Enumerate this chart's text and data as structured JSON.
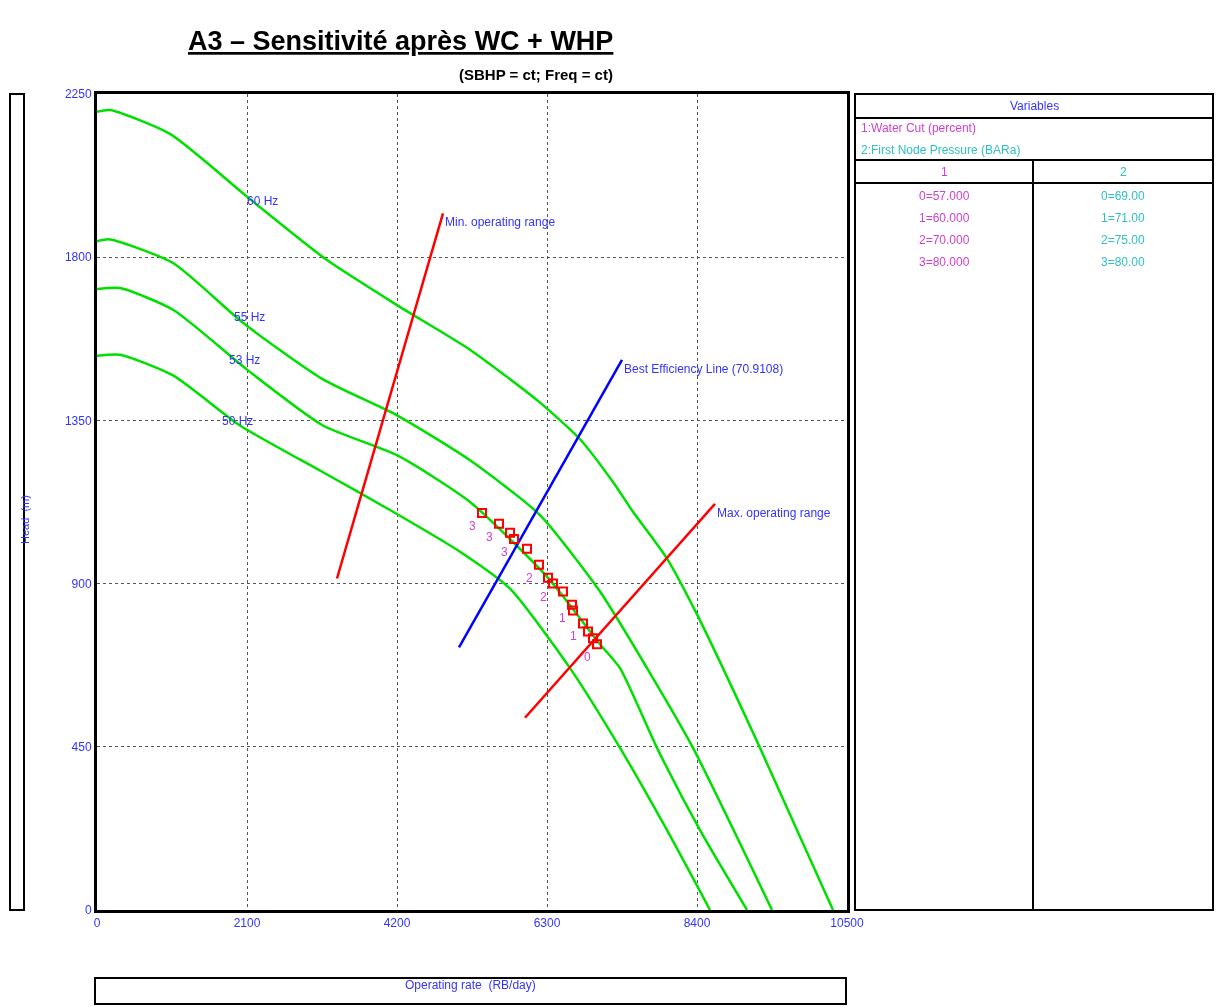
{
  "chart_data": {
    "type": "line",
    "title": "A3 – Sensitivité après WC + WHP",
    "subtitle": "(SBHP = ct; Freq = ct)",
    "xlabel": "Operating rate  (RB/day)",
    "ylabel": "Head  (m)",
    "xlim": [
      0,
      10500
    ],
    "xticks": [
      0,
      2100,
      4200,
      6300,
      8400,
      10500
    ],
    "ylim": [
      0,
      2250
    ],
    "yticks": [
      0,
      450,
      900,
      1350,
      1800,
      2250
    ],
    "grid": true,
    "line_style": "solid",
    "series": [
      {
        "color": "#00e000",
        "marker": "none",
        "x": [
          0,
          182,
          1022,
          2100,
          3220,
          4200,
          5222,
          6202,
          6762,
          7224,
          7504,
          7980,
          8400,
          9282,
          10304
        ],
        "values": [
          2201,
          2206,
          2140,
          1967,
          1792,
          1668,
          1545,
          1399,
          1298,
          1180,
          1098,
          969,
          815,
          447,
          0
        ]
      },
      {
        "color": "#00e000",
        "marker": "none",
        "x": [
          0,
          182,
          1064,
          2044,
          3164,
          4200,
          5222,
          6202,
          7042,
          7700,
          8344,
          9450
        ],
        "values": [
          1844,
          1849,
          1784,
          1619,
          1463,
          1364,
          1240,
          1089,
          878,
          667,
          447,
          0
        ]
      },
      {
        "color": "#00e000",
        "marker": "none",
        "x": [
          0,
          322,
          1064,
          2100,
          3164,
          4200,
          5222,
          6314,
          7042,
          7322,
          7840,
          8442,
          9100
        ],
        "values": [
          1712,
          1715,
          1655,
          1490,
          1336,
          1254,
          1125,
          916,
          733,
          667,
          447,
          220,
          0
        ]
      },
      {
        "color": "#00e000",
        "marker": "none",
        "x": [
          0,
          322,
          1064,
          2002,
          3164,
          4102,
          5082,
          5782,
          6622,
          7322,
          7980,
          8582
        ],
        "values": [
          1528,
          1531,
          1474,
          1336,
          1207,
          1103,
          988,
          886,
          667,
          447,
          220,
          0
        ]
      },
      {
        "color": "#ff0000",
        "marker": "none",
        "x": [
          3360,
          4844
        ],
        "values": [
          914,
          1921
        ]
      },
      {
        "color": "#0000ff",
        "marker": "none",
        "x": [
          5068,
          7350
        ],
        "values": [
          724,
          1517
        ]
      },
      {
        "color": "#ff0000",
        "marker": "none",
        "x": [
          5992,
          8652
        ],
        "values": [
          530,
          1120
        ]
      },
      {
        "type": "scatter",
        "color": "#ff0000",
        "marker": "square",
        "x": [
          5390,
          5628,
          5782,
          5838,
          6020,
          6188,
          6314,
          6384,
          6524,
          6650,
          6664,
          6804,
          6874,
          6944,
          7000
        ],
        "values": [
          1095,
          1065,
          1040,
          1023,
          996,
          952,
          916,
          900,
          878,
          842,
          826,
          790,
          768,
          749,
          733
        ]
      }
    ],
    "annotations": [
      "60 Hz",
      "55 Hz",
      "53 Hz",
      "50 Hz",
      {
        "text": "Min. operating range",
        "x": 4844,
        "y": 1921
      },
      {
        "text": "Best Efficiency Line (70.9108)",
        "x": 7350,
        "y": 1517
      },
      {
        "text": "Max. operating range",
        "x": 8652,
        "y": 1120
      },
      {
        "text": "3",
        "x": 5390,
        "y": 1095
      },
      {
        "text": "3",
        "x": 5628,
        "y": 1065
      },
      {
        "text": "3",
        "x": 5838,
        "y": 1023
      },
      {
        "text": "2",
        "x": 6188,
        "y": 952
      },
      {
        "text": "2",
        "x": 6384,
        "y": 900
      },
      {
        "text": "1",
        "x": 6650,
        "y": 842
      },
      {
        "text": "1",
        "x": 6804,
        "y": 790
      },
      {
        "text": "0",
        "x": 7000,
        "y": 733
      },
      "Variables",
      "1:Water Cut (percent)",
      "2:First Node Pressure (BARa)",
      "1",
      "2",
      "0=57.000",
      "1=60.000",
      "2=70.000",
      "3=80.000",
      "0=69.00",
      "1=71.00",
      "2=75.00",
      "3=80.00"
    ]
  }
}
